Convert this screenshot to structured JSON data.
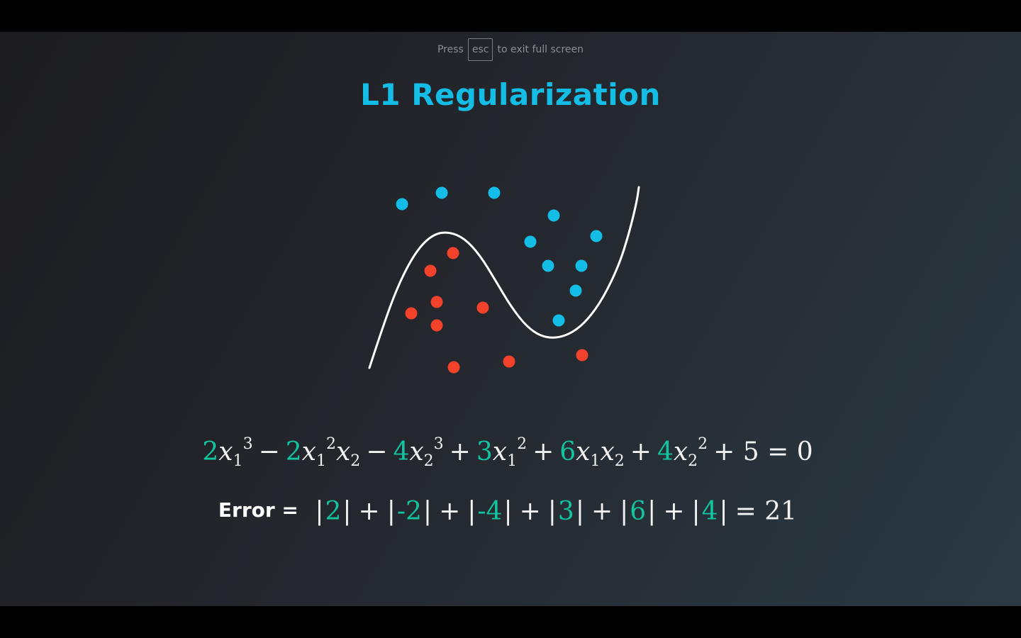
{
  "fullscreen_hint": {
    "before": "Press",
    "key": "esc",
    "after": "to exit full screen"
  },
  "title": "L1 Regularization",
  "colors": {
    "title": "#14bde6",
    "blue_points": "#14bde6",
    "red_points": "#f2422c",
    "coefficient": "#12c4a0",
    "curve": "#ffffff"
  },
  "chart_data": {
    "type": "scatter",
    "title": "",
    "series": [
      {
        "color": "#14bde6",
        "points": [
          [
            567,
            288
          ],
          [
            623,
            272
          ],
          [
            697,
            272
          ],
          [
            781,
            304
          ],
          [
            748,
            341
          ],
          [
            841,
            333
          ],
          [
            773,
            375
          ],
          [
            820,
            375
          ],
          [
            812,
            410
          ],
          [
            788,
            452
          ]
        ]
      },
      {
        "color": "#f2422c",
        "points": [
          [
            639,
            357
          ],
          [
            607,
            382
          ],
          [
            616,
            426
          ],
          [
            580,
            442
          ],
          [
            616,
            459
          ],
          [
            681,
            434
          ],
          [
            640,
            518
          ],
          [
            718,
            510
          ],
          [
            821,
            501
          ]
        ]
      }
    ],
    "curve": [
      [
        521,
        519
      ],
      [
        544,
        448
      ],
      [
        567,
        390
      ],
      [
        590,
        350
      ],
      [
        612,
        330
      ],
      [
        633,
        327
      ],
      [
        655,
        336
      ],
      [
        677,
        360
      ],
      [
        699,
        396
      ],
      [
        721,
        433
      ],
      [
        743,
        461
      ],
      [
        764,
        475
      ],
      [
        786,
        477
      ],
      [
        808,
        469
      ],
      [
        829,
        451
      ],
      [
        851,
        420
      ],
      [
        873,
        374
      ],
      [
        887,
        330
      ],
      [
        898,
        285
      ],
      [
        901,
        264
      ]
    ]
  },
  "equation": {
    "terms": [
      {
        "sign": "",
        "coef": "2",
        "var": "x",
        "sub": "1",
        "sup": "3",
        "var2": "",
        "sub2": "",
        "sup2": ""
      },
      {
        "sign": "−",
        "coef": "2",
        "var": "x",
        "sub": "1",
        "sup": "2",
        "var2": "x",
        "sub2": "2",
        "sup2": ""
      },
      {
        "sign": "−",
        "coef": "4",
        "var": "x",
        "sub": "2",
        "sup": "3",
        "var2": "",
        "sub2": "",
        "sup2": ""
      },
      {
        "sign": "+",
        "coef": "3",
        "var": "x",
        "sub": "1",
        "sup": "2",
        "var2": "",
        "sub2": "",
        "sup2": ""
      },
      {
        "sign": "+",
        "coef": "6",
        "var": "x",
        "sub": "1",
        "sup": "",
        "var2": "x",
        "sub2": "2",
        "sup2": ""
      },
      {
        "sign": "+",
        "coef": "4",
        "var": "x",
        "sub": "2",
        "sup": "2",
        "var2": "",
        "sub2": "",
        "sup2": ""
      }
    ],
    "tail": "+ 5 = 0"
  },
  "error": {
    "label": "Error =",
    "values": [
      "2",
      "-2",
      "-4",
      "3",
      "6",
      "4"
    ],
    "total": "= 21"
  }
}
